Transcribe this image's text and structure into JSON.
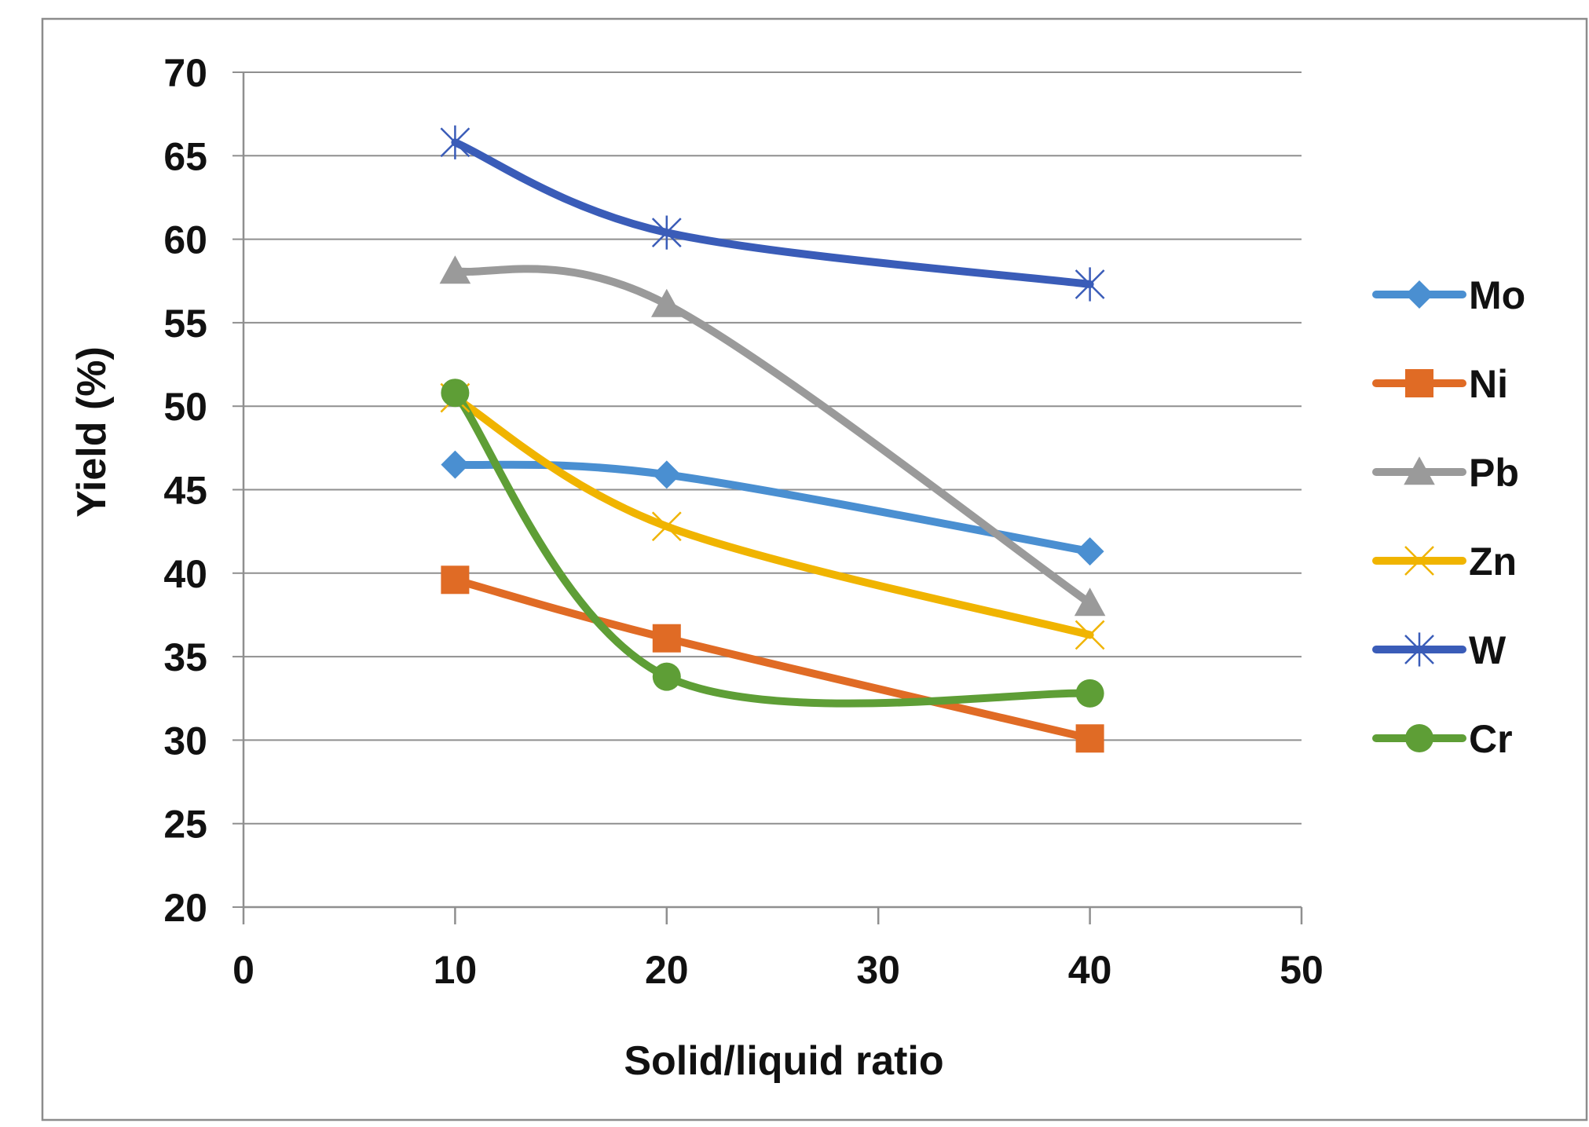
{
  "chart_data": {
    "type": "line",
    "title": "",
    "xlabel": "Solid/liquid ratio",
    "ylabel": "Yield (%)",
    "xlim": [
      0,
      50
    ],
    "ylim": [
      20,
      70
    ],
    "xticks": [
      "0",
      "10",
      "20",
      "30",
      "40",
      "50"
    ],
    "yticks": [
      "20",
      "25",
      "30",
      "35",
      "40",
      "45",
      "50",
      "55",
      "60",
      "65",
      "70"
    ],
    "grid": "horizontal",
    "legend_position": "right",
    "smooth": true,
    "x": [
      10,
      20,
      40
    ],
    "series": [
      {
        "name": "Mo",
        "values": [
          46.5,
          45.9,
          41.3
        ],
        "color": "#4a8fd1",
        "marker": "diamond"
      },
      {
        "name": "Ni",
        "values": [
          39.6,
          36.1,
          30.1
        ],
        "color": "#e06b25",
        "marker": "square"
      },
      {
        "name": "Pb",
        "values": [
          58.1,
          56.1,
          38.2
        ],
        "color": "#9a9a9a",
        "marker": "triangle"
      },
      {
        "name": "Zn",
        "values": [
          50.5,
          42.8,
          36.3
        ],
        "color": "#f0b400",
        "marker": "x"
      },
      {
        "name": "W",
        "values": [
          65.8,
          60.4,
          57.3
        ],
        "color": "#3a5cb8",
        "marker": "star"
      },
      {
        "name": "Cr",
        "values": [
          50.8,
          33.8,
          32.8
        ],
        "color": "#5e9e36",
        "marker": "circle"
      }
    ]
  }
}
